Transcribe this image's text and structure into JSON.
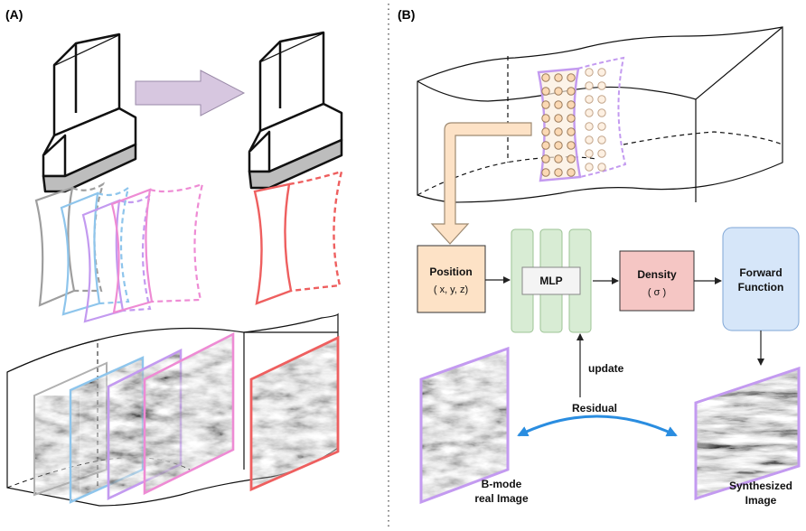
{
  "panels": {
    "a": {
      "label": "(A)"
    },
    "b": {
      "label": "(B)"
    }
  },
  "blocks": {
    "position": {
      "title": "Position",
      "subtitle": "( x, y, z)"
    },
    "mlp": {
      "title": "MLP"
    },
    "density": {
      "title": "Density",
      "subtitle": "( σ )"
    },
    "forward": {
      "line1": "Forward",
      "line2": "Function"
    }
  },
  "labels": {
    "update": "update",
    "residual": "Residual",
    "bmode_line1": "B-mode",
    "bmode_line2": "real Image",
    "synth_line1": "Synthesized",
    "synth_line2": "Image"
  },
  "colors": {
    "frame_gray": "#9e9e9e",
    "frame_blue": "#8ec5ec",
    "frame_purple": "#c39af0",
    "frame_pink": "#ee8bd4",
    "frame_red": "#ee5f5f",
    "position_fill": "#fde2c6",
    "mlp_fill": "#d8ecd4",
    "density_fill": "#f5c6c4",
    "forward_fill": "#d6e6f9",
    "residual_arrow": "#2a8de0",
    "big_arrow": "#d7c7e0"
  }
}
